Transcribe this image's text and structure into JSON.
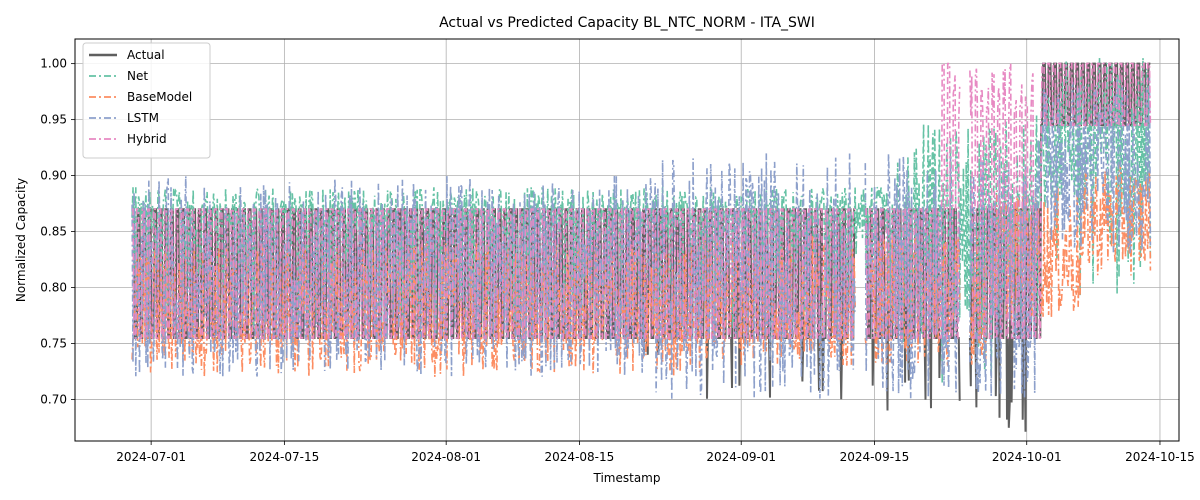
{
  "chart_data": {
    "type": "line",
    "title": "Actual vs Predicted Capacity BL_NTC_NORM - ITA_SWI",
    "xlabel": "Timestamp",
    "ylabel": "Normalized Capacity",
    "xlim": [
      "2024-06-23",
      "2024-10-17"
    ],
    "ylim": [
      0.663,
      1.022
    ],
    "x_ticks": [
      "2024-07-01",
      "2024-07-15",
      "2024-08-01",
      "2024-08-15",
      "2024-09-01",
      "2024-09-15",
      "2024-10-01",
      "2024-10-15"
    ],
    "y_ticks": [
      0.7,
      0.75,
      0.8,
      0.85,
      0.9,
      0.95,
      1.0
    ],
    "y_tick_labels": [
      "0.70",
      "0.75",
      "0.80",
      "0.85",
      "0.90",
      "0.95",
      "1.00"
    ],
    "grid": true,
    "legend_position": "top-left",
    "data_range": [
      "2024-06-29",
      "2024-10-14"
    ],
    "series": [
      {
        "name": "Actual",
        "color": "#5f5f5f",
        "style": "solid",
        "keypoints": [
          [
            "2024-06-29",
            0.755
          ],
          [
            "2024-07-15",
            0.755
          ],
          [
            "2024-08-28",
            0.73
          ],
          [
            "2024-09-23",
            0.755
          ],
          [
            "2024-10-01",
            0.7
          ],
          [
            "2024-10-02",
            0.94
          ],
          [
            "2024-10-14",
            1.0
          ]
        ]
      },
      {
        "name": "Net",
        "color": "#66c2a5",
        "style": "dashdot",
        "keypoints": [
          [
            "2024-06-29",
            0.875
          ],
          [
            "2024-08-01",
            0.88
          ],
          [
            "2024-09-01",
            0.875
          ],
          [
            "2024-09-20",
            0.92
          ],
          [
            "2024-10-05",
            0.9
          ],
          [
            "2024-10-14",
            1.0
          ]
        ]
      },
      {
        "name": "BaseModel",
        "color": "#fc8d62",
        "style": "dashdot",
        "keypoints": [
          [
            "2024-06-29",
            0.735
          ],
          [
            "2024-08-01",
            0.725
          ],
          [
            "2024-09-01",
            0.76
          ],
          [
            "2024-10-01",
            0.8
          ],
          [
            "2024-10-14",
            0.88
          ]
        ]
      },
      {
        "name": "LSTM",
        "color": "#8da0cb",
        "style": "dashdot",
        "keypoints": [
          [
            "2024-06-29",
            0.72
          ],
          [
            "2024-07-18",
            0.69
          ],
          [
            "2024-08-15",
            0.745
          ],
          [
            "2024-09-07",
            0.96
          ],
          [
            "2024-10-01",
            0.76
          ],
          [
            "2024-10-14",
            0.92
          ]
        ]
      },
      {
        "name": "Hybrid",
        "color": "#e78ac3",
        "style": "dashdot",
        "keypoints": [
          [
            "2024-06-29",
            0.755
          ],
          [
            "2024-09-23",
            0.755
          ],
          [
            "2024-09-22",
            1.0
          ],
          [
            "2024-10-01",
            0.755
          ],
          [
            "2024-10-14",
            1.0
          ]
        ]
      }
    ]
  }
}
